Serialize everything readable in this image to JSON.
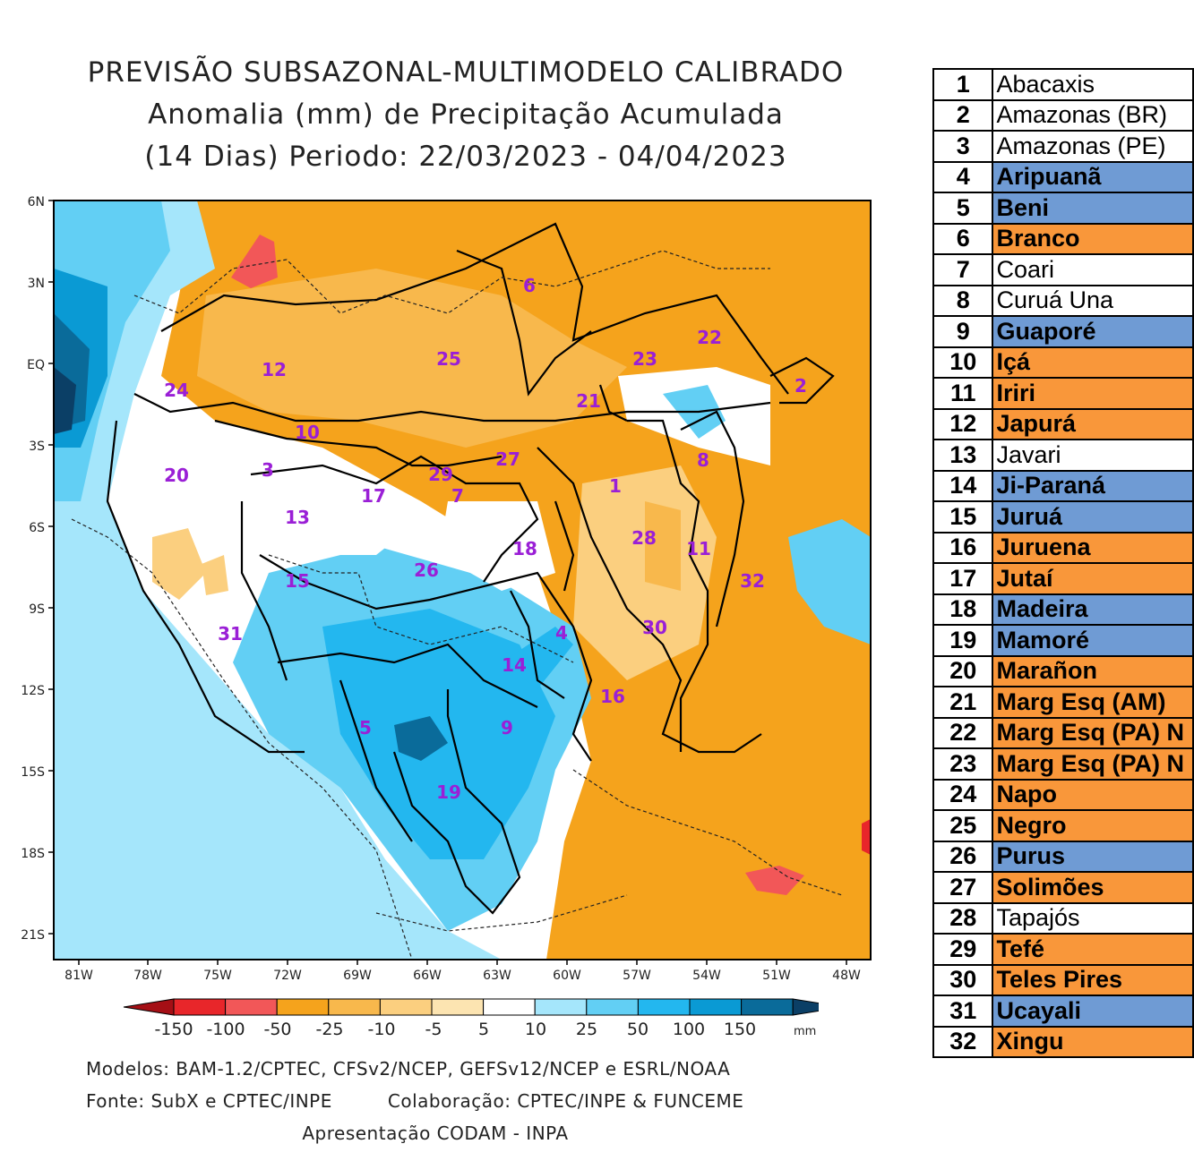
{
  "title": {
    "line1": "PREVISÃO SUBSAZONAL-MULTIMODELO CALIBRADO",
    "line2": "Anomalia (mm) de Precipitação Acumulada",
    "line3": "(14 Dias) Periodo: 22/03/2023 - 04/04/2023"
  },
  "axes": {
    "lat_labels": [
      "6N",
      "3N",
      "EQ",
      "3S",
      "6S",
      "9S",
      "12S",
      "15S",
      "18S",
      "21S"
    ],
    "lon_labels": [
      "81W",
      "78W",
      "75W",
      "72W",
      "69W",
      "66W",
      "63W",
      "60W",
      "57W",
      "54W",
      "51W",
      "48W"
    ]
  },
  "basin_labels": [
    "1",
    "2",
    "3",
    "4",
    "5",
    "6",
    "7",
    "8",
    "9",
    "10",
    "11",
    "12",
    "13",
    "14",
    "15",
    "16",
    "17",
    "18",
    "19",
    "20",
    "21",
    "22",
    "23",
    "24",
    "25",
    "26",
    "27",
    "28",
    "29",
    "30",
    "31",
    "32"
  ],
  "colorbar": {
    "labels": [
      "-150",
      "-100",
      "-50",
      "-25",
      "-10",
      "-5",
      "5",
      "10",
      "25",
      "50",
      "100",
      "150"
    ],
    "unit": "mm",
    "colors": [
      "#a50f15",
      "#e8262a",
      "#f25758",
      "#f5a31c",
      "#f8b84c",
      "#fbcf7f",
      "#fce4b1",
      "#ffffff",
      "#a5e6fb",
      "#62cff4",
      "#23b7ef",
      "#0a9ad4",
      "#0a6b9a",
      "#0b3f66"
    ]
  },
  "footer": {
    "models": "Modelos: BAM-1.2/CPTEC, CFSv2/NCEP, GEFSv12/NCEP e ESRL/NOAA",
    "source": "Fonte: SubX e CPTEC/INPE",
    "collab": "Colaboração: CPTEC/INPE & FUNCEME",
    "presentation": "Apresentação CODAM - INPA"
  },
  "basins": [
    {
      "num": "1",
      "name": "Abacaxis",
      "status": "white"
    },
    {
      "num": "2",
      "name": "Amazonas (BR)",
      "status": "white"
    },
    {
      "num": "3",
      "name": "Amazonas (PE)",
      "status": "white"
    },
    {
      "num": "4",
      "name": "Aripuanã",
      "status": "blue"
    },
    {
      "num": "5",
      "name": "Beni",
      "status": "blue"
    },
    {
      "num": "6",
      "name": "Branco",
      "status": "orange"
    },
    {
      "num": "7",
      "name": "Coari",
      "status": "white"
    },
    {
      "num": "8",
      "name": "Curuá Una",
      "status": "white"
    },
    {
      "num": "9",
      "name": "Guaporé",
      "status": "blue"
    },
    {
      "num": "10",
      "name": "Içá",
      "status": "orange"
    },
    {
      "num": "11",
      "name": "Iriri",
      "status": "orange"
    },
    {
      "num": "12",
      "name": "Japurá",
      "status": "orange"
    },
    {
      "num": "13",
      "name": "Javari",
      "status": "white"
    },
    {
      "num": "14",
      "name": "Ji-Paraná",
      "status": "blue"
    },
    {
      "num": "15",
      "name": "Juruá",
      "status": "blue"
    },
    {
      "num": "16",
      "name": "Juruena",
      "status": "orange"
    },
    {
      "num": "17",
      "name": "Jutaí",
      "status": "orange"
    },
    {
      "num": "18",
      "name": "Madeira",
      "status": "blue"
    },
    {
      "num": "19",
      "name": "Mamoré",
      "status": "blue"
    },
    {
      "num": "20",
      "name": "Marañon",
      "status": "orange"
    },
    {
      "num": "21",
      "name": "Marg Esq (AM)",
      "status": "orange"
    },
    {
      "num": "22",
      "name": "Marg Esq (PA) N",
      "status": "orange"
    },
    {
      "num": "23",
      "name": "Marg Esq (PA) N",
      "status": "orange"
    },
    {
      "num": "24",
      "name": "Napo",
      "status": "orange"
    },
    {
      "num": "25",
      "name": "Negro",
      "status": "orange"
    },
    {
      "num": "26",
      "name": "Purus",
      "status": "blue"
    },
    {
      "num": "27",
      "name": "Solimões",
      "status": "orange"
    },
    {
      "num": "28",
      "name": "Tapajós",
      "status": "white"
    },
    {
      "num": "29",
      "name": "Tefé",
      "status": "orange"
    },
    {
      "num": "30",
      "name": "Teles Pires",
      "status": "orange"
    },
    {
      "num": "31",
      "name": "Ucayali",
      "status": "blue"
    },
    {
      "num": "32",
      "name": "Xingu",
      "status": "orange"
    }
  ]
}
